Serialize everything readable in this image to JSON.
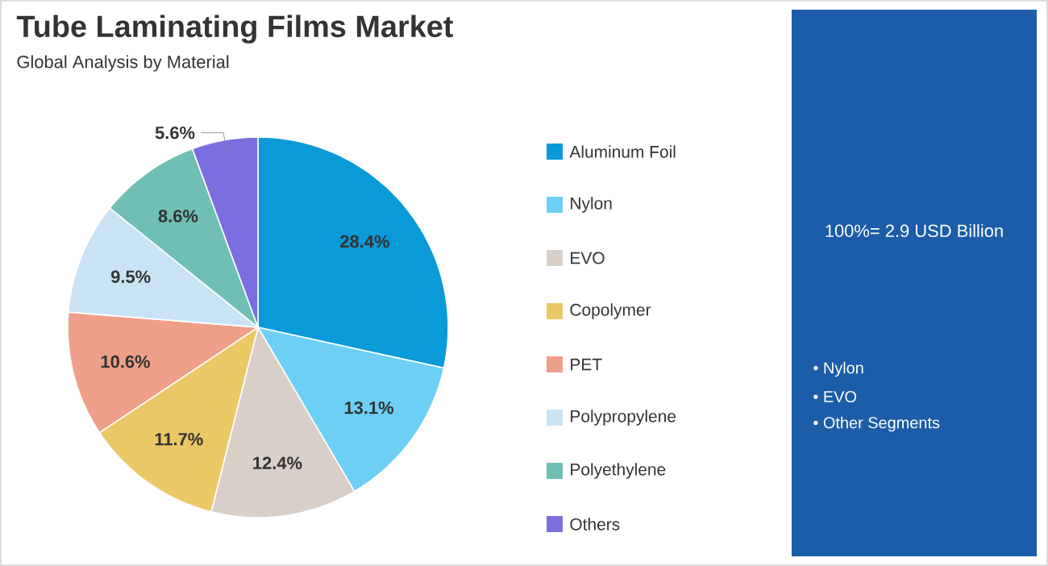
{
  "chart_data": {
    "type": "pie",
    "title": "Tube Laminating Films Market",
    "subtitle": "Global Analysis by Material",
    "categories": [
      "Aluminum Foil",
      "Nylon",
      "EVO",
      "Copolymer",
      "PET",
      "Polypropylene",
      "Polyethylene",
      "Others"
    ],
    "values": [
      28.4,
      13.1,
      12.4,
      11.7,
      10.6,
      9.5,
      8.6,
      5.6
    ],
    "colors": [
      "#0a9ad8",
      "#6dcff6",
      "#d9cfc9",
      "#eac865",
      "#ee9f8a",
      "#c9e3f5",
      "#6fbfb5",
      "#7b6fe0"
    ],
    "value_labels": [
      "28.4%",
      "13.1%",
      "12.4%",
      "11.7%",
      "10.6%",
      "9.5%",
      "8.6%",
      "5.6%"
    ],
    "legend": "right",
    "annotations": [
      "100%= 2.9 USD Billion",
      "• Nylon",
      "• EVO",
      "• Other Segments"
    ]
  }
}
